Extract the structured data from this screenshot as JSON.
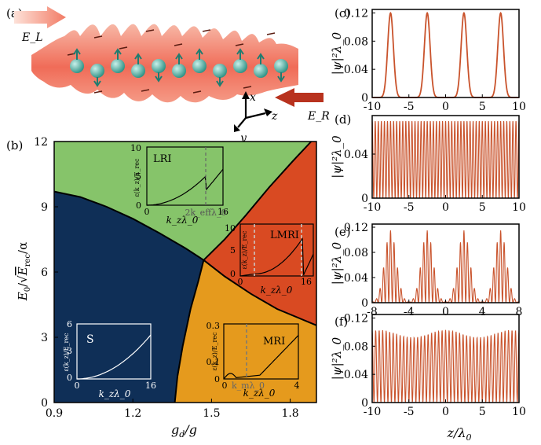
{
  "panel_labels": {
    "a": "(a)",
    "b": "(b)",
    "c": "(c)",
    "d": "(d)",
    "e": "(e)",
    "f": "(f)"
  },
  "schematic": {
    "field_left": "E_L",
    "field_right": "E_R",
    "axis_x": "x",
    "axis_y": "y",
    "axis_z": "z"
  },
  "colors": {
    "S": "#0f2f57",
    "LRI": "#86c46a",
    "LMRI": "#d94a22",
    "MRI": "#e59a1d",
    "trace": "#c9532c"
  },
  "chart_data": [
    {
      "id": "b",
      "type": "area",
      "xlabel": "g_d/g",
      "ylabel": "E_0/√(E_rec)/α",
      "xlim": [
        0.9,
        1.9
      ],
      "ylim": [
        0,
        12
      ],
      "xticks": [
        "0.9",
        "1.2",
        "1.5",
        "1.8"
      ],
      "yticks": [
        "0",
        "3",
        "6",
        "9",
        "12"
      ],
      "regions": [
        "S",
        "LRI",
        "LMRI",
        "MRI"
      ],
      "boundaries": {
        "S_upper": [
          [
            0.9,
            9.7
          ],
          [
            1.0,
            9.45
          ],
          [
            1.1,
            9.0
          ],
          [
            1.2,
            8.45
          ],
          [
            1.3,
            7.8
          ],
          [
            1.4,
            7.1
          ],
          [
            1.47,
            6.55
          ]
        ],
        "S_MRI": [
          [
            1.47,
            6.55
          ],
          [
            1.45,
            5.6
          ],
          [
            1.42,
            4.3
          ],
          [
            1.39,
            2.6
          ],
          [
            1.37,
            1.2
          ],
          [
            1.36,
            0
          ]
        ],
        "LRI_LMRI": [
          [
            1.47,
            6.55
          ],
          [
            1.55,
            7.5
          ],
          [
            1.63,
            8.6
          ],
          [
            1.72,
            9.9
          ],
          [
            1.81,
            11.1
          ],
          [
            1.88,
            12
          ]
        ],
        "MRI_LMRI": [
          [
            1.47,
            6.55
          ],
          [
            1.55,
            5.8
          ],
          [
            1.65,
            5.0
          ],
          [
            1.75,
            4.3
          ],
          [
            1.9,
            3.55
          ]
        ]
      },
      "insets": [
        {
          "label": "LRI",
          "xlabel": "k_zλ_0",
          "ylabel": "ε(k_z)/E_rec",
          "xticks": [
            "0",
            "16"
          ],
          "yticks": [
            "0",
            "5",
            "10"
          ],
          "marker": "2k_effλ_0"
        },
        {
          "label": "LMRI",
          "xlabel": "k_zλ_0",
          "ylabel": "ε(k_z)/E_rec",
          "xticks": [
            "0",
            "16"
          ],
          "yticks": [
            "0",
            "5",
            "10"
          ]
        },
        {
          "label": "S",
          "xlabel": "k_zλ_0",
          "ylabel": "ε(k_z)/E_rec",
          "xticks": [
            "0",
            "16"
          ],
          "yticks": [
            "0",
            "3",
            "6"
          ]
        },
        {
          "label": "MRI",
          "xlabel": "k_zλ_0",
          "ylabel": "ε(k_z)/E_rec",
          "xticks": [
            "0",
            "4"
          ],
          "yticks": [
            "0",
            "0.1",
            "0.3"
          ],
          "marker": "k_mλ_0"
        }
      ]
    },
    {
      "id": "c",
      "type": "line",
      "ylabel": "|ψ|²λ_0",
      "xlim": [
        -10,
        10
      ],
      "ylim": [
        0,
        0.12
      ],
      "xticks": [
        "-10",
        "-5",
        "0",
        "5",
        "10"
      ],
      "yticks": [
        "0",
        "0.04",
        "0.08",
        "0.12"
      ],
      "peaks_z": [
        -7.5,
        -2.5,
        2.5,
        7.5
      ],
      "peak_value": 0.12
    },
    {
      "id": "d",
      "type": "line",
      "ylabel": "|ψ|²λ_0",
      "xlim": [
        -10,
        10
      ],
      "ylim": [
        0,
        0.07
      ],
      "xticks": [
        "-10",
        "-5",
        "0",
        "5",
        "10"
      ],
      "yticks": [
        "0",
        "0.04"
      ],
      "peak_count": 48,
      "peak_value": 0.07
    },
    {
      "id": "e",
      "type": "line",
      "ylabel": "|ψ|²λ_0",
      "xlim": [
        -8,
        8
      ],
      "ylim": [
        0,
        0.12
      ],
      "xticks": [
        "-8",
        "-4",
        "0",
        "4",
        "8"
      ],
      "yticks": [
        "0",
        "0.04",
        "0.08",
        "0.12"
      ],
      "cluster_centers": [
        -6,
        -2,
        2,
        6
      ]
    },
    {
      "id": "f",
      "type": "line",
      "ylabel": "|ψ|²λ_0",
      "xlabel": "z/λ_0",
      "xlim": [
        -10,
        10
      ],
      "ylim": [
        0,
        0.12
      ],
      "xticks": [
        "-10",
        "-5",
        "0",
        "5",
        "10"
      ],
      "yticks": [
        "0",
        "0.04",
        "0.08",
        "0.12"
      ]
    }
  ]
}
